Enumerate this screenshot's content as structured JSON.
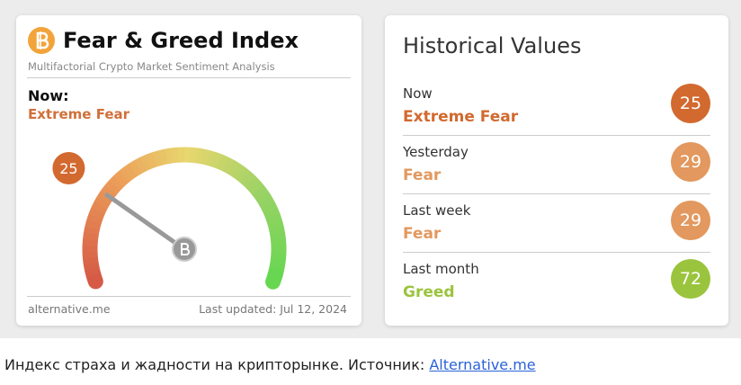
{
  "widget": {
    "title": "Fear & Greed Index",
    "subtitle": "Multifactorial Crypto Market Sentiment Analysis",
    "now_label": "Now:",
    "now_classification": "Extreme Fear",
    "now_color": "#d0703a",
    "gauge": {
      "value": 25,
      "lim": [
        0,
        100
      ]
    },
    "source": "alternative.me",
    "updated": "Last updated: Jul 12, 2024"
  },
  "historical": {
    "title": "Historical Values",
    "rows": [
      {
        "label": "Now",
        "classification": "Extreme Fear",
        "value": 25,
        "color": "#d2692f"
      },
      {
        "label": "Yesterday",
        "classification": "Fear",
        "value": 29,
        "color": "#e2985e"
      },
      {
        "label": "Last week",
        "classification": "Fear",
        "value": 29,
        "color": "#e2985e"
      },
      {
        "label": "Last month",
        "classification": "Greed",
        "value": 72,
        "color": "#9bc43e"
      }
    ]
  },
  "caption": {
    "text": "Индекс страха и жадности на крипторынке. Источник:",
    "link": "Alternative.me"
  }
}
